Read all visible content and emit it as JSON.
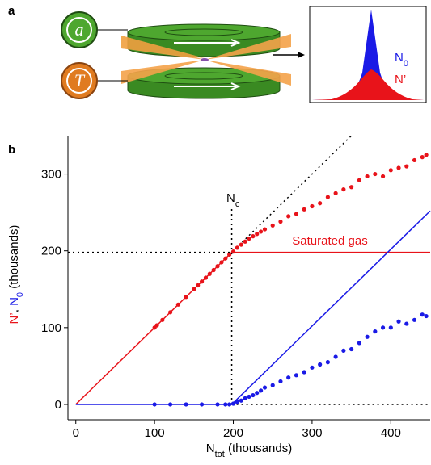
{
  "panel_a": {
    "label": "a",
    "clock_top": "a",
    "clock_bottom": "T",
    "inset_top": [
      "N",
      "0"
    ],
    "inset_bottom": "N’"
  },
  "chart_data": {
    "type": "scatter",
    "panel_label": "b",
    "xlabel": [
      {
        "text": "N",
        "color": "#000000"
      },
      {
        "text": "tot",
        "color": "#000000",
        "sub": true
      },
      {
        "text": " (thousands)",
        "color": "#000000"
      }
    ],
    "ylabel": [
      {
        "text": "N’",
        "color": "#e8131a"
      },
      {
        "text": ", ",
        "color": "#000000"
      },
      {
        "text": "N",
        "color": "#1a1ae6"
      },
      {
        "text": "0",
        "color": "#1a1ae6",
        "sub": true
      },
      {
        "text": " (thousands)",
        "color": "#000000"
      }
    ],
    "annotation": {
      "text": "Saturated gas",
      "color": "#e8131a"
    },
    "nc_label": [
      {
        "text": "N",
        "color": "#000000"
      },
      {
        "text": "c",
        "color": "#000000",
        "sub": true
      }
    ],
    "xlim": [
      -10,
      450
    ],
    "ylim": [
      -20,
      350
    ],
    "xticks": [
      0,
      100,
      200,
      300,
      400
    ],
    "yticks": [
      0,
      100,
      200,
      300
    ],
    "series": [
      {
        "color": "#e8131a",
        "mode": "markers",
        "x": [
          100,
          103,
          110,
          120,
          130,
          140,
          150,
          155,
          160,
          165,
          170,
          175,
          180,
          185,
          190,
          195,
          200,
          205,
          210,
          215,
          220,
          225,
          230,
          235,
          240,
          250,
          260,
          270,
          280,
          290,
          300,
          310,
          320,
          330,
          340,
          350,
          360,
          370,
          380,
          390,
          400,
          410,
          420,
          430,
          440,
          445
        ],
        "values": [
          100,
          103,
          110,
          120,
          130,
          140,
          150,
          155,
          160,
          165,
          170,
          175,
          180,
          185,
          190,
          195,
          199,
          204,
          208,
          212,
          216,
          219,
          222,
          225,
          228,
          233,
          238,
          245,
          248,
          254,
          258,
          262,
          270,
          275,
          280,
          283,
          292,
          297,
          300,
          297,
          305,
          308,
          310,
          318,
          322,
          325
        ]
      },
      {
        "color": "#1a1ae6",
        "mode": "markers",
        "x": [
          100,
          120,
          140,
          160,
          180,
          190,
          195,
          200,
          205,
          210,
          215,
          220,
          225,
          230,
          235,
          240,
          250,
          260,
          270,
          280,
          290,
          300,
          310,
          320,
          330,
          340,
          350,
          360,
          370,
          380,
          390,
          400,
          410,
          420,
          430,
          440,
          445
        ],
        "values": [
          0,
          0,
          0,
          0,
          0,
          0,
          0,
          1,
          3,
          5,
          8,
          10,
          12,
          15,
          18,
          22,
          25,
          30,
          35,
          38,
          42,
          48,
          52,
          55,
          62,
          70,
          72,
          80,
          88,
          95,
          100,
          100,
          108,
          105,
          110,
          117,
          115
        ]
      },
      {
        "color": "#e8131a",
        "mode": "line",
        "x": [
          0,
          198,
          450
        ],
        "values": [
          0,
          198,
          198
        ]
      },
      {
        "color": "#1a1ae6",
        "mode": "line",
        "x": [
          0,
          198,
          450
        ],
        "values": [
          0,
          0,
          252
        ]
      },
      {
        "color": "#000000",
        "mode": "dotted",
        "x": [
          -10,
          198
        ],
        "values": [
          198,
          198
        ]
      },
      {
        "color": "#000000",
        "mode": "dotted",
        "x": [
          198,
          198
        ],
        "values": [
          0,
          255
        ]
      },
      {
        "color": "#000000",
        "mode": "dotted",
        "x": [
          198,
          350
        ],
        "values": [
          198,
          350
        ]
      },
      {
        "color": "#000000",
        "mode": "dotted",
        "x": [
          198,
          450
        ],
        "values": [
          0,
          0
        ]
      }
    ]
  }
}
